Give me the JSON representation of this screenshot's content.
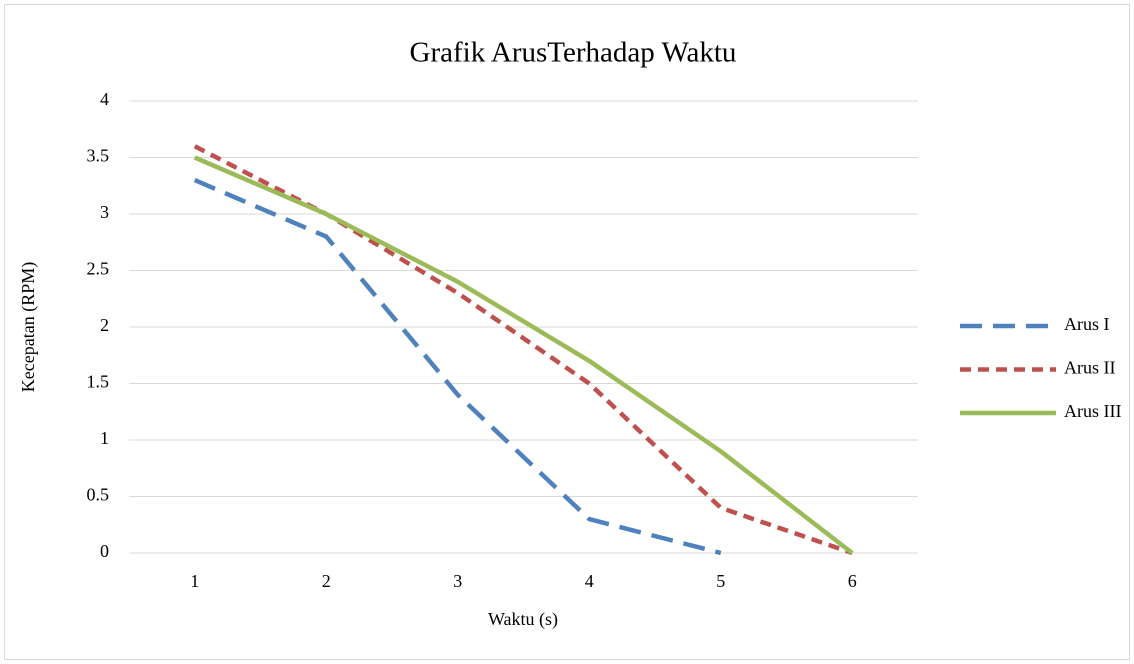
{
  "chart_data": {
    "type": "line",
    "title": "Grafik ArusTerhadap Waktu",
    "x_label": "Waktu (s)",
    "y_label": "Kecepatan (RPM)",
    "categories": [
      "1",
      "2",
      "3",
      "4",
      "5",
      "6"
    ],
    "series": [
      {
        "name": "Arus I",
        "color": "#4f81bd",
        "dash": "long-dash",
        "values": [
          3.3,
          2.8,
          1.4,
          0.3,
          0,
          null
        ]
      },
      {
        "name": "Arus II",
        "color": "#c0504d",
        "dash": "short-dash",
        "values": [
          3.6,
          3.0,
          2.3,
          1.5,
          0.4,
          0
        ]
      },
      {
        "name": "Arus III",
        "color": "#9bbb59",
        "dash": "solid",
        "values": [
          3.5,
          3.0,
          2.4,
          1.7,
          0.9,
          0
        ]
      }
    ],
    "ylim": [
      0,
      4
    ],
    "yticks": [
      0,
      0.5,
      1,
      1.5,
      2,
      2.5,
      3,
      3.5,
      4
    ],
    "grid": true,
    "legend": "right"
  }
}
